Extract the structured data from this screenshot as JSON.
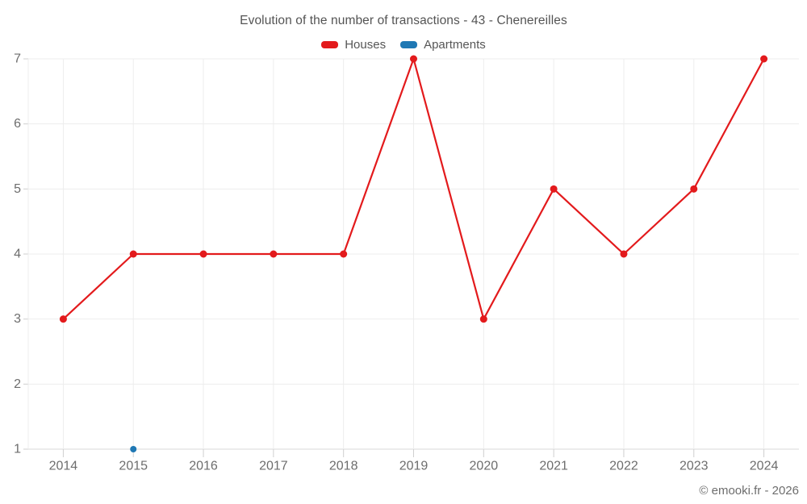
{
  "header": {
    "title": "Evolution of the number of transactions - 43 - Chenereilles"
  },
  "legend": {
    "items": [
      {
        "label": "Houses",
        "color": "#e31a1c"
      },
      {
        "label": "Apartments",
        "color": "#1f78b4"
      }
    ]
  },
  "chart_data": {
    "type": "line",
    "title": "Evolution of the number of transactions - 43 - Chenereilles",
    "categories": [
      "2014",
      "2015",
      "2016",
      "2017",
      "2018",
      "2019",
      "2020",
      "2021",
      "2022",
      "2023",
      "2024"
    ],
    "series": [
      {
        "name": "Houses",
        "color": "#e31a1c",
        "marker_radius": 4.5,
        "line_width": 2.2,
        "values": [
          3,
          4,
          4,
          4,
          4,
          7,
          3,
          5,
          4,
          5,
          7
        ]
      },
      {
        "name": "Apartments",
        "color": "#1f78b4",
        "marker_radius": 4,
        "line_width": 2.2,
        "values": [
          null,
          1,
          null,
          null,
          null,
          null,
          null,
          null,
          null,
          null,
          null
        ]
      }
    ],
    "xlabel": "",
    "ylabel": "",
    "ylim": [
      1,
      7
    ],
    "y_ticks": [
      1,
      2,
      3,
      4,
      5,
      6,
      7
    ],
    "grid": true,
    "legend_position": "top"
  },
  "footer": {
    "copyright": "© emooki.fr - 2026"
  },
  "style": {
    "background": "#ffffff",
    "grid_color": "#ededed",
    "axis_line_color": "#d8d8d8",
    "tick_color": "#cfcfcf",
    "axis_text_color": "#6d6d6d",
    "title_text_color": "#545454"
  }
}
